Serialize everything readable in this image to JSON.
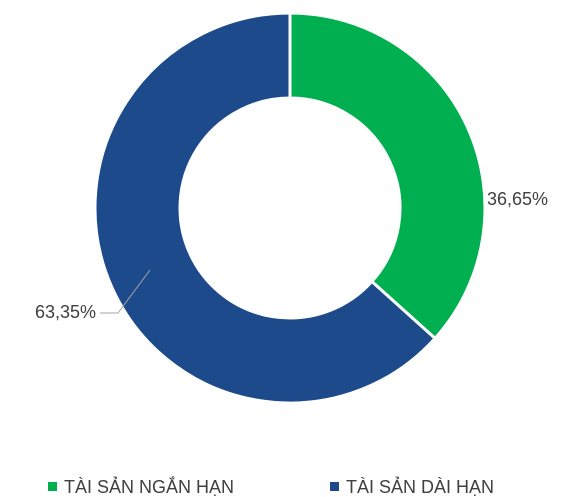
{
  "chart_data": {
    "type": "donut",
    "categories": [
      "TÀI SẢN NGẮN HẠN",
      "TÀI SẢN DÀI HẠN"
    ],
    "values": [
      36.65,
      63.35
    ],
    "value_labels": [
      "36,65%",
      "63,35%"
    ],
    "colors": [
      "#00b050",
      "#1c4a8b"
    ],
    "legend": "bottom"
  }
}
